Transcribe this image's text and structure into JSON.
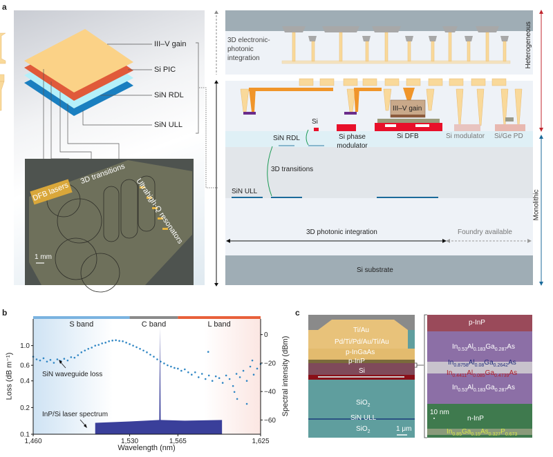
{
  "panel_a": {
    "label": "a",
    "stack_layers": [
      "III–V gain",
      "Si PIC",
      "SiN RDL",
      "SiN ULL"
    ],
    "layer_colors": [
      "#fbd287",
      "#e05a3a",
      "#b4f0fa",
      "#1a7fc0"
    ],
    "photo_labels": {
      "dfb": "DFB lasers",
      "transitions": "3D transitions",
      "resonators": "Ultrahigh-Q resonators",
      "scale": "1 mm"
    },
    "diagram": {
      "electronic": "3D electronic-photonic integration",
      "si": "Si",
      "sin_rdl": "SiN RDL",
      "transitions": "3D transitions",
      "sin_ull": "SiN ULL",
      "phase_mod": "Si phase modulator",
      "iiiv_gain": "III–V gain",
      "dfb": "Si DFB",
      "modulator": "Si modulator",
      "pd": "Si/Ge PD",
      "photonic_int": "3D photonic integration",
      "foundry": "Foundry available",
      "substrate": "Si substrate",
      "heterogeneous": "Heterogeneous",
      "monolithic": "Monolithic"
    }
  },
  "panel_b": {
    "label": "b",
    "bands": [
      {
        "name": "S band",
        "from": 1460,
        "to": 1530,
        "color": "#7ab3e0"
      },
      {
        "name": "C band",
        "from": 1530,
        "to": 1565,
        "color": "#8a8a8a"
      },
      {
        "name": "L band",
        "from": 1565,
        "to": 1625,
        "color": "#e8603a"
      }
    ],
    "annotations": {
      "loss": "SiN waveguide loss",
      "laser": "InP/Si laser spectrum"
    }
  },
  "chart_data": {
    "type": "scatter",
    "xlabel": "Wavelength (nm)",
    "ylabel": "Loss (dB m⁻¹)",
    "ylabel_right": "Spectral intensity (dBm)",
    "xlim": [
      1460,
      1625
    ],
    "ylim": [
      0.1,
      2.0
    ],
    "yscale": "log",
    "ylim_right": [
      -70,
      11
    ],
    "x_ticks": [
      "1,460",
      "1,530",
      "1,565",
      "1,625"
    ],
    "x_tick_values": [
      1460,
      1530,
      1565,
      1625
    ],
    "y_ticks": [
      "0.1",
      "0.2",
      "0.4",
      "0.6",
      "1.0"
    ],
    "y_tick_values": [
      0.1,
      0.2,
      0.4,
      0.6,
      1.0
    ],
    "y_right_ticks": [
      "0",
      "−20",
      "−40",
      "−60"
    ],
    "y_right_tick_values": [
      0,
      -20,
      -40,
      -60
    ],
    "series": [
      {
        "axis": "left",
        "kind": "scatter",
        "color": "#2f86c4",
        "x": [
          1460,
          1462.5,
          1465,
          1467.5,
          1470,
          1472.5,
          1475,
          1477.5,
          1480,
          1482.5,
          1485,
          1487.5,
          1490,
          1492.5,
          1495,
          1497.5,
          1500,
          1502.5,
          1505,
          1507.5,
          1510,
          1512.5,
          1515,
          1517.5,
          1520,
          1522.5,
          1525,
          1527.5,
          1530,
          1532.5,
          1535,
          1537.5,
          1540,
          1542.5,
          1545,
          1547.5,
          1550,
          1552.5,
          1555,
          1557.5,
          1560,
          1562.5,
          1565,
          1567.5,
          1570,
          1572.5,
          1575,
          1577.5,
          1580,
          1582.5,
          1585,
          1587.5,
          1590,
          1592.5,
          1595,
          1597.5,
          1600,
          1602.5,
          1605,
          1607.5,
          1610,
          1612.5,
          1615,
          1617.5,
          1620,
          1622.5,
          1625,
          1587,
          1608,
          1615,
          1606,
          1619
        ],
        "y": [
          0.75,
          0.7,
          0.68,
          0.72,
          0.66,
          0.69,
          0.64,
          0.7,
          0.67,
          0.71,
          0.68,
          0.74,
          0.73,
          0.78,
          0.84,
          0.88,
          0.92,
          0.95,
          1.0,
          1.02,
          1.06,
          1.08,
          1.12,
          1.14,
          1.15,
          1.13,
          1.12,
          1.08,
          1.04,
          1.0,
          0.96,
          0.92,
          0.88,
          0.84,
          0.79,
          0.75,
          0.7,
          0.66,
          0.63,
          0.6,
          0.58,
          0.56,
          0.55,
          0.52,
          0.54,
          0.5,
          0.47,
          0.5,
          0.44,
          0.48,
          0.42,
          0.46,
          0.4,
          0.45,
          0.43,
          0.38,
          0.46,
          0.42,
          0.35,
          0.48,
          0.44,
          0.52,
          0.4,
          0.58,
          0.47,
          0.55,
          0.62,
          0.85,
          0.25,
          0.22,
          0.3,
          0.68
        ]
      },
      {
        "axis": "right",
        "kind": "spectrum",
        "color": "#3a3f9a",
        "x": [
          1505,
          1530,
          1551.5,
          1552,
          1552.5,
          1570,
          1597
        ],
        "y": [
          -62,
          -61,
          -60,
          5,
          -60,
          -60.5,
          -60
        ]
      }
    ]
  },
  "panel_c": {
    "label": "c",
    "sem_layers": [
      "Ti/Au",
      "Pd/Ti/Pd/Au/Ti/Au",
      "p-InGaAs",
      "p-InP",
      "Si",
      "SiO2",
      "SiN ULL",
      "SiO2"
    ],
    "sem_scale": "1 μm",
    "tem_scale": "10 nm",
    "tem_labels": {
      "p_inp": "p-InP",
      "n_inp": "n-InP",
      "barrier": [
        [
          "In",
          "0.53"
        ],
        [
          "Al",
          "0.183"
        ],
        [
          "Ga",
          "0.287"
        ],
        [
          "As",
          ""
        ]
      ],
      "well1": [
        [
          "In",
          "0.8758"
        ],
        [
          "Al",
          "0.08"
        ],
        [
          "Ga",
          "0.2642"
        ],
        [
          "As",
          ""
        ]
      ],
      "well2": [
        [
          "In",
          "0.4411"
        ],
        [
          "Al",
          "0.085"
        ],
        [
          "Ga",
          "0.4739"
        ],
        [
          "As",
          ""
        ]
      ],
      "quaternary": [
        [
          "In",
          "0.85"
        ],
        [
          "Ga",
          "0.15"
        ],
        [
          "As",
          "0.327"
        ],
        [
          "P",
          "0.673"
        ]
      ]
    }
  }
}
